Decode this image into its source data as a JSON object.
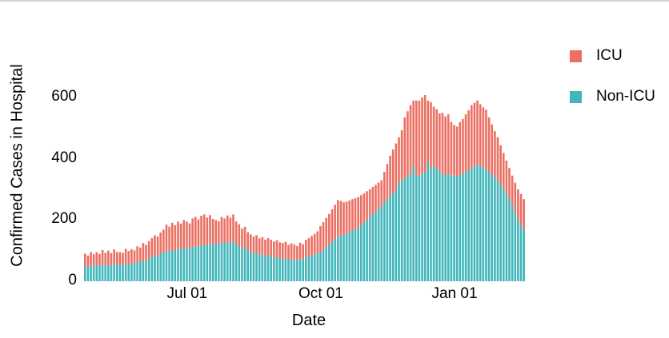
{
  "chart_data": {
    "type": "bar",
    "stacked": true,
    "xlabel": "Date",
    "ylabel": "Confirmed Cases in Hospital",
    "y_ticks": [
      0,
      200,
      400,
      600
    ],
    "ylim": [
      0,
      620
    ],
    "grid": false,
    "legend_position": "right",
    "x_tick_labels": [
      {
        "label": "Jul 01",
        "index": 35
      },
      {
        "label": "Oct 01",
        "index": 81
      },
      {
        "label": "Jan 01",
        "index": 127
      }
    ],
    "x_sample_interval_days": 2,
    "series": [
      {
        "name": "ICU",
        "color": "#EB6F62",
        "values": [
          40,
          38,
          42,
          39,
          43,
          41,
          46,
          42,
          45,
          42,
          47,
          44,
          40,
          42,
          48,
          45,
          45,
          45,
          50,
          49,
          55,
          53,
          57,
          62,
          65,
          65,
          69,
          74,
          85,
          81,
          87,
          84,
          90,
          86,
          91,
          85,
          83,
          92,
          95,
          91,
          96,
          98,
          92,
          93,
          85,
          75,
          75,
          82,
          81,
          85,
          83,
          87,
          75,
          71,
          64,
          66,
          60,
          57,
          55,
          56,
          55,
          56,
          54,
          55,
          55,
          53,
          54,
          53,
          53,
          54,
          50,
          51,
          50,
          48,
          52,
          50,
          57,
          60,
          63,
          67,
          72,
          85,
          90,
          96,
          100,
          107,
          113,
          120,
          113,
          106,
          105,
          104,
          103,
          101,
          100,
          97,
          95,
          93,
          90,
          89,
          87,
          86,
          85,
          100,
          115,
          130,
          142,
          153,
          145,
          163,
          200,
          210,
          225,
          215,
          245,
          245,
          250,
          253,
          200,
          217,
          195,
          192,
          190,
          200,
          191,
          193,
          175,
          165,
          163,
          172,
          180,
          189,
          196,
          205,
          207,
          210,
          202,
          197,
          195,
          178,
          164,
          151,
          140,
          128,
          118,
          108,
          100,
          98,
          98,
          100,
          101,
          100
        ]
      },
      {
        "name": "Non-ICU",
        "color": "#41B6BB",
        "values": [
          50,
          46,
          53,
          49,
          52,
          48,
          56,
          51,
          55,
          50,
          57,
          52,
          55,
          51,
          58,
          54,
          60,
          56,
          64,
          61,
          70,
          66,
          74,
          79,
          85,
          81,
          90,
          94,
          100,
          97,
          104,
          99,
          105,
          102,
          109,
          110,
          106,
          113,
          115,
          111,
          118,
          120,
          116,
          123,
          119,
          125,
          121,
          128,
          124,
          130,
          125,
          131,
          120,
          115,
          108,
          112,
          100,
          96,
          91,
          94,
          85,
          88,
          82,
          86,
          80,
          77,
          80,
          74,
          72,
          75,
          69,
          73,
          70,
          67,
          74,
          71,
          78,
          81,
          85,
          88,
          91,
          95,
          103,
          111,
          120,
          128,
          137,
          145,
          149,
          152,
          155,
          160,
          165,
          170,
          175,
          184,
          192,
          201,
          210,
          219,
          228,
          236,
          245,
          257,
          268,
          280,
          288,
          297,
          325,
          330,
          335,
          345,
          350,
          375,
          345,
          345,
          350,
          355,
          390,
          368,
          375,
          370,
          358,
          350,
          347,
          352,
          345,
          345,
          342,
          348,
          350,
          356,
          362,
          370,
          375,
          380,
          376,
          371,
          365,
          357,
          348,
          339,
          330,
          316,
          301,
          286,
          270,
          247,
          224,
          200,
          184,
          168
        ]
      }
    ]
  },
  "legend": {
    "items": [
      {
        "label": "ICU",
        "color": "#EB6F62"
      },
      {
        "label": "Non-ICU",
        "color": "#41B6BB"
      }
    ]
  },
  "colors": {
    "icu": "#EB6F62",
    "non_icu": "#41B6BB",
    "top_border": "#d2d2d2",
    "text": "#000000",
    "background": "#ffffff"
  }
}
